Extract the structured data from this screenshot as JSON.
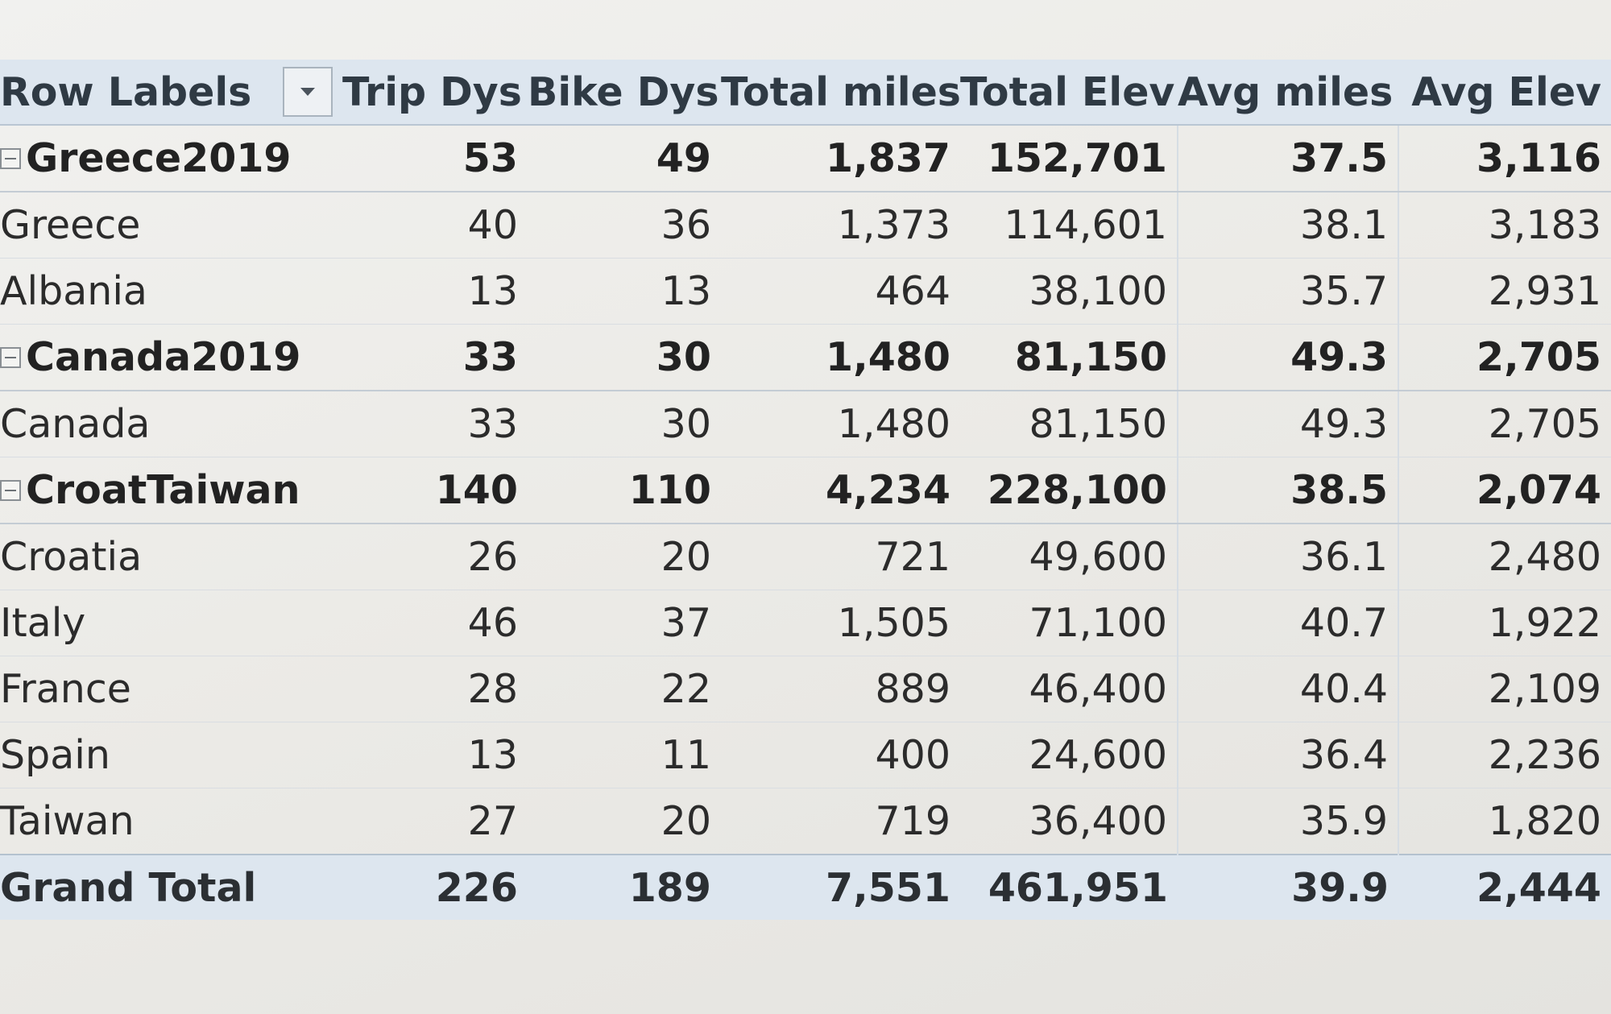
{
  "pivot": {
    "columns": {
      "row_labels": "Row Labels",
      "trip_dys": "Trip Dys",
      "bike_dys": "Bike Dys",
      "total_miles": "Total miles",
      "total_elev": "Total Elev",
      "avg_miles": "Avg miles",
      "avg_elev": "Avg Elev"
    },
    "groups": [
      {
        "label": "Greece2019",
        "values": [
          "53",
          "49",
          "1,837",
          "152,701",
          "37.5",
          "3,116"
        ],
        "children": [
          {
            "label": "Greece",
            "values": [
              "40",
              "36",
              "1,373",
              "114,601",
              "38.1",
              "3,183"
            ]
          },
          {
            "label": "Albania",
            "values": [
              "13",
              "13",
              "464",
              "38,100",
              "35.7",
              "2,931"
            ]
          }
        ]
      },
      {
        "label": "Canada2019",
        "values": [
          "33",
          "30",
          "1,480",
          "81,150",
          "49.3",
          "2,705"
        ],
        "children": [
          {
            "label": "Canada",
            "values": [
              "33",
              "30",
              "1,480",
              "81,150",
              "49.3",
              "2,705"
            ]
          }
        ]
      },
      {
        "label": "CroatTaiwan",
        "values": [
          "140",
          "110",
          "4,234",
          "228,100",
          "38.5",
          "2,074"
        ],
        "children": [
          {
            "label": "Croatia",
            "values": [
              "26",
              "20",
              "721",
              "49,600",
              "36.1",
              "2,480"
            ]
          },
          {
            "label": "Italy",
            "values": [
              "46",
              "37",
              "1,505",
              "71,100",
              "40.7",
              "1,922"
            ]
          },
          {
            "label": "France",
            "values": [
              "28",
              "22",
              "889",
              "46,400",
              "40.4",
              "2,109"
            ]
          },
          {
            "label": "Spain",
            "values": [
              "13",
              "11",
              "400",
              "24,600",
              "36.4",
              "2,236"
            ]
          },
          {
            "label": "Taiwan",
            "values": [
              "27",
              "20",
              "719",
              "36,400",
              "35.9",
              "1,820"
            ]
          }
        ]
      }
    ],
    "grand_total": {
      "label": "Grand Total",
      "values": [
        "226",
        "189",
        "7,551",
        "461,951",
        "39.9",
        "2,444"
      ]
    }
  }
}
